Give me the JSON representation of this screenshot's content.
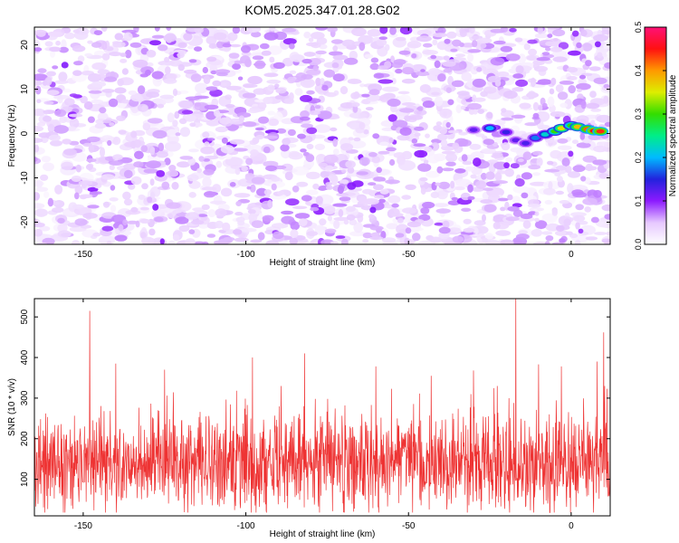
{
  "figure_title": "KOM5.2025.347.01.28.G02",
  "chart_data": [
    {
      "type": "heatmap",
      "title": "KOM5.2025.347.01.28.G02",
      "xlabel": "Height of straight line (km)",
      "ylabel": "Frequency (Hz)",
      "xlim": [
        -165,
        12
      ],
      "ylim": [
        -25,
        24
      ],
      "xticks": [
        -150,
        -100,
        -50,
        0
      ],
      "yticks": [
        -20,
        -10,
        0,
        10,
        20
      ],
      "colorbar": {
        "label": "Normalized spectral amplitude",
        "range": [
          0.0,
          0.5
        ],
        "ticks": [
          0.0,
          0.1,
          0.2,
          0.3,
          0.4,
          0.5
        ],
        "colors": [
          "#ffffff",
          "#e6c8ff",
          "#8c1aff",
          "#2222dd",
          "#00bbff",
          "#00ee88",
          "#33dd00",
          "#ddee00",
          "#ff9900",
          "#ff1111",
          "#ff1177"
        ]
      },
      "background_level": 0.06,
      "signal_track": [
        {
          "x": -30,
          "y": 0.8,
          "value": 0.12
        },
        {
          "x": -25,
          "y": 1.2,
          "value": 0.2
        },
        {
          "x": -20,
          "y": 0.3,
          "value": 0.14
        },
        {
          "x": -17,
          "y": -1.5,
          "value": 0.12
        },
        {
          "x": -14,
          "y": -2.2,
          "value": 0.13
        },
        {
          "x": -11,
          "y": -1.0,
          "value": 0.18
        },
        {
          "x": -8,
          "y": -0.2,
          "value": 0.22
        },
        {
          "x": -5,
          "y": 0.5,
          "value": 0.3
        },
        {
          "x": -3,
          "y": 1.2,
          "value": 0.36
        },
        {
          "x": 0,
          "y": 1.8,
          "value": 0.3
        },
        {
          "x": 2,
          "y": 1.5,
          "value": 0.38
        },
        {
          "x": 5,
          "y": 1.0,
          "value": 0.42
        },
        {
          "x": 7,
          "y": 0.6,
          "value": 0.45
        },
        {
          "x": 9,
          "y": 0.5,
          "value": 0.44
        }
      ]
    },
    {
      "type": "line",
      "xlabel": "Height of straight line (km)",
      "ylabel": "SNR (10 * v/v)",
      "xlim": [
        -165,
        12
      ],
      "ylim": [
        10,
        545
      ],
      "xticks": [
        -150,
        -100,
        -50,
        0
      ],
      "yticks": [
        100,
        200,
        300,
        400,
        500
      ],
      "color": "#ee3333",
      "sample_count": 1770,
      "baseline": 140,
      "spread": 85,
      "peaks": [
        {
          "x": -148,
          "y": 515
        },
        {
          "x": -17,
          "y": 545
        },
        {
          "x": 10,
          "y": 462
        },
        {
          "x": 8,
          "y": 390
        },
        {
          "x": -140,
          "y": 385
        },
        {
          "x": -125,
          "y": 370
        },
        {
          "x": -98,
          "y": 400
        },
        {
          "x": -82,
          "y": 410
        },
        {
          "x": -60,
          "y": 378
        },
        {
          "x": -43,
          "y": 355
        },
        {
          "x": -30,
          "y": 368
        },
        {
          "x": -10,
          "y": 383
        },
        {
          "x": -3,
          "y": 378
        }
      ]
    }
  ]
}
